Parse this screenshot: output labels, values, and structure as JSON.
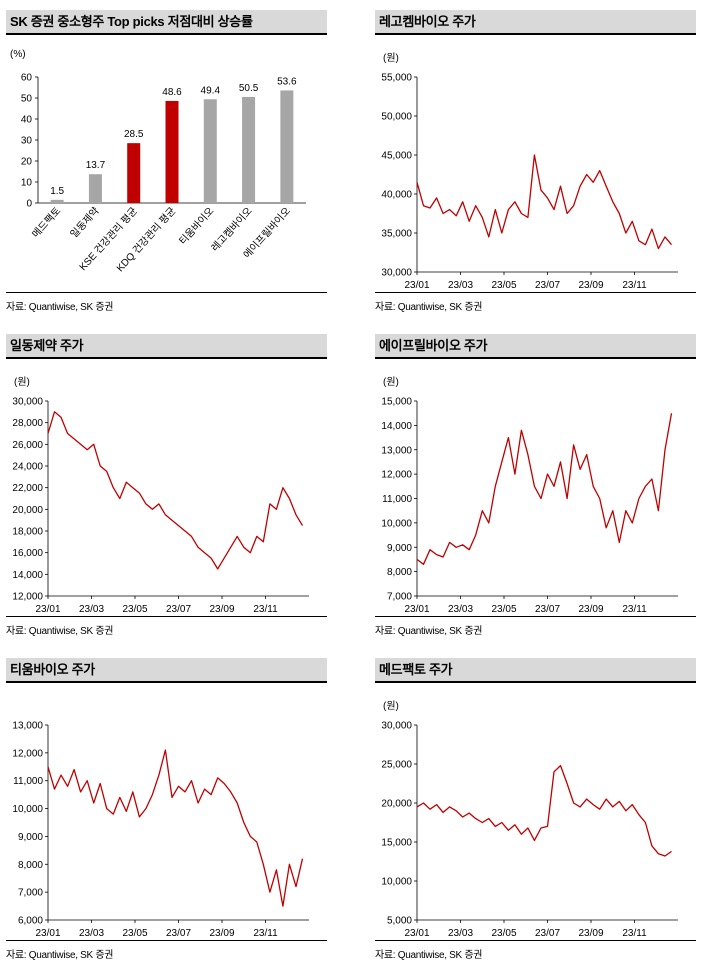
{
  "panels": [
    {
      "id": "top-picks",
      "title": "SK 증권 중소형주 Top picks 저점대비 상승률",
      "source": "자료: Quantiwise, SK 증권"
    },
    {
      "id": "rekem",
      "title": "레고켐바이오 주가",
      "source": "자료: Quantiwise, SK 증권"
    },
    {
      "id": "ildong",
      "title": "일동제약 주가",
      "source": "자료: Quantiwise, SK 증권"
    },
    {
      "id": "abl",
      "title": "에이프릴바이오 주가",
      "source": "자료: Quantiwise, SK 증권"
    },
    {
      "id": "tium",
      "title": "티움바이오 주가",
      "source": "자료: Quantiwise, SK 증권"
    },
    {
      "id": "medpact",
      "title": "메드팩토 주가",
      "source": "자료: Quantiwise, SK 증권"
    }
  ],
  "chart_data": [
    {
      "type": "bar",
      "unit": "(%)",
      "categories": [
        "메드팩토",
        "일동제약",
        "KSE 건강관리 평균",
        "KDQ 건강관리 평균",
        "티움바이오",
        "레고켐바이오",
        "에이프릴바이오"
      ],
      "values": [
        1.5,
        13.7,
        28.5,
        48.6,
        49.4,
        50.5,
        53.6
      ],
      "value_labels": [
        "1.5",
        "13.7",
        "28.5",
        "48.6",
        "49.4",
        "50.5",
        "53.6"
      ],
      "highlight": [
        false,
        false,
        true,
        true,
        false,
        false,
        false
      ],
      "ylim": [
        0,
        60
      ],
      "yticks": [
        "0",
        "10",
        "20",
        "30",
        "40",
        "50",
        "60"
      ],
      "colors": {
        "bar": "#a6a6a6",
        "highlight": "#c00000"
      },
      "grid": false,
      "legend": "none"
    },
    {
      "type": "line",
      "unit": "(원)",
      "ylim": [
        30000,
        55000
      ],
      "yticks": [
        "30,000",
        "35,000",
        "40,000",
        "45,000",
        "50,000",
        "55,000"
      ],
      "xticks": [
        "23/01",
        "23/03",
        "23/05",
        "23/07",
        "23/09",
        "23/11"
      ],
      "color": "#c00000",
      "x": [
        0,
        0.3,
        0.6,
        0.9,
        1.2,
        1.5,
        1.8,
        2.1,
        2.4,
        2.7,
        3.0,
        3.3,
        3.6,
        3.9,
        4.2,
        4.5,
        4.8,
        5.1,
        5.4,
        5.7,
        6.0,
        6.3,
        6.6,
        6.9,
        7.2,
        7.5,
        7.8,
        8.1,
        8.4,
        8.7,
        9.0,
        9.3,
        9.6,
        9.9,
        10.2,
        10.5,
        10.8,
        11.1,
        11.4,
        11.7
      ],
      "values": [
        41500,
        38500,
        38200,
        39500,
        37500,
        38000,
        37200,
        39000,
        36500,
        38500,
        37000,
        34500,
        38000,
        35000,
        38000,
        39000,
        37500,
        37000,
        45000,
        40500,
        39500,
        38000,
        41000,
        37500,
        38500,
        41000,
        42500,
        41500,
        43000,
        41000,
        39000,
        37500,
        35000,
        36500,
        34000,
        33500,
        35500,
        33000,
        34500,
        33500
      ]
    },
    {
      "type": "line",
      "unit": "(원)",
      "ylim": [
        12000,
        30000
      ],
      "yticks": [
        "12,000",
        "14,000",
        "16,000",
        "18,000",
        "20,000",
        "22,000",
        "24,000",
        "26,000",
        "28,000",
        "30,000"
      ],
      "xticks": [
        "23/01",
        "23/03",
        "23/05",
        "23/07",
        "23/09",
        "23/11"
      ],
      "color": "#c00000",
      "x": [
        0,
        0.3,
        0.6,
        0.9,
        1.2,
        1.5,
        1.8,
        2.1,
        2.4,
        2.7,
        3.0,
        3.3,
        3.6,
        3.9,
        4.2,
        4.5,
        4.8,
        5.1,
        5.4,
        5.7,
        6.0,
        6.3,
        6.6,
        6.9,
        7.2,
        7.5,
        7.8,
        8.1,
        8.4,
        8.7,
        9.0,
        9.3,
        9.6,
        9.9,
        10.2,
        10.5,
        10.8,
        11.1,
        11.4,
        11.7
      ],
      "values": [
        27000,
        29000,
        28500,
        27000,
        26500,
        26000,
        25500,
        26000,
        24000,
        23500,
        22000,
        21000,
        22500,
        22000,
        21500,
        20500,
        20000,
        20500,
        19500,
        19000,
        18500,
        18000,
        17500,
        16500,
        16000,
        15500,
        14500,
        15500,
        16500,
        17500,
        16500,
        16000,
        17500,
        17000,
        20500,
        20000,
        22000,
        21000,
        19500,
        18500
      ]
    },
    {
      "type": "line",
      "unit": "(원)",
      "ylim": [
        7000,
        15000
      ],
      "yticks": [
        "7,000",
        "8,000",
        "9,000",
        "10,000",
        "11,000",
        "12,000",
        "13,000",
        "14,000",
        "15,000"
      ],
      "xticks": [
        "23/01",
        "23/03",
        "23/05",
        "23/07",
        "23/09",
        "23/11"
      ],
      "color": "#c00000",
      "x": [
        0,
        0.3,
        0.6,
        0.9,
        1.2,
        1.5,
        1.8,
        2.1,
        2.4,
        2.7,
        3.0,
        3.3,
        3.6,
        3.9,
        4.2,
        4.5,
        4.8,
        5.1,
        5.4,
        5.7,
        6.0,
        6.3,
        6.6,
        6.9,
        7.2,
        7.5,
        7.8,
        8.1,
        8.4,
        8.7,
        9.0,
        9.3,
        9.6,
        9.9,
        10.2,
        10.5,
        10.8,
        11.1,
        11.4,
        11.7
      ],
      "values": [
        8500,
        8300,
        8900,
        8700,
        8600,
        9200,
        9000,
        9100,
        8900,
        9500,
        10500,
        10000,
        11500,
        12500,
        13500,
        12000,
        13800,
        12800,
        11500,
        11000,
        12000,
        11500,
        12500,
        11000,
        13200,
        12200,
        12800,
        11500,
        11000,
        9800,
        10500,
        9200,
        10500,
        10000,
        11000,
        11500,
        11800,
        10500,
        13000,
        14500
      ]
    },
    {
      "type": "line",
      "unit": "",
      "ylim": [
        6000,
        13000
      ],
      "yticks": [
        "6,000",
        "7,000",
        "8,000",
        "9,000",
        "10,000",
        "11,000",
        "12,000",
        "13,000"
      ],
      "xticks": [
        "23/01",
        "23/03",
        "23/05",
        "23/07",
        "23/09",
        "23/11"
      ],
      "color": "#c00000",
      "x": [
        0,
        0.3,
        0.6,
        0.9,
        1.2,
        1.5,
        1.8,
        2.1,
        2.4,
        2.7,
        3.0,
        3.3,
        3.6,
        3.9,
        4.2,
        4.5,
        4.8,
        5.1,
        5.4,
        5.7,
        6.0,
        6.3,
        6.6,
        6.9,
        7.2,
        7.5,
        7.8,
        8.1,
        8.4,
        8.7,
        9.0,
        9.3,
        9.6,
        9.9,
        10.2,
        10.5,
        10.8,
        11.1,
        11.4,
        11.7
      ],
      "values": [
        11500,
        10700,
        11200,
        10800,
        11400,
        10600,
        11000,
        10200,
        10900,
        10000,
        9800,
        10400,
        9900,
        10600,
        9700,
        10000,
        10500,
        11200,
        12100,
        10400,
        10800,
        10600,
        11000,
        10200,
        10700,
        10500,
        11100,
        10900,
        10600,
        10200,
        9500,
        9000,
        8800,
        8000,
        7000,
        7800,
        6500,
        8000,
        7200,
        8200
      ]
    },
    {
      "type": "line",
      "unit": "(원)",
      "ylim": [
        5000,
        30000
      ],
      "yticks": [
        "5,000",
        "10,000",
        "15,000",
        "20,000",
        "25,000",
        "30,000"
      ],
      "xticks": [
        "23/01",
        "23/03",
        "23/05",
        "23/07",
        "23/09",
        "23/11"
      ],
      "color": "#c00000",
      "x": [
        0,
        0.3,
        0.6,
        0.9,
        1.2,
        1.5,
        1.8,
        2.1,
        2.4,
        2.7,
        3.0,
        3.3,
        3.6,
        3.9,
        4.2,
        4.5,
        4.8,
        5.1,
        5.4,
        5.7,
        6.0,
        6.3,
        6.6,
        6.9,
        7.2,
        7.5,
        7.8,
        8.1,
        8.4,
        8.7,
        9.0,
        9.3,
        9.6,
        9.9,
        10.2,
        10.5,
        10.8,
        11.1,
        11.4,
        11.7
      ],
      "values": [
        19500,
        20000,
        19200,
        19800,
        18800,
        19500,
        19000,
        18200,
        18700,
        18000,
        17500,
        18000,
        17000,
        17500,
        16500,
        17200,
        16000,
        16800,
        15200,
        16800,
        17000,
        24000,
        24800,
        22500,
        20000,
        19500,
        20500,
        19800,
        19200,
        20500,
        19500,
        20200,
        19000,
        19800,
        18500,
        17500,
        14500,
        13500,
        13200,
        13800
      ]
    }
  ]
}
